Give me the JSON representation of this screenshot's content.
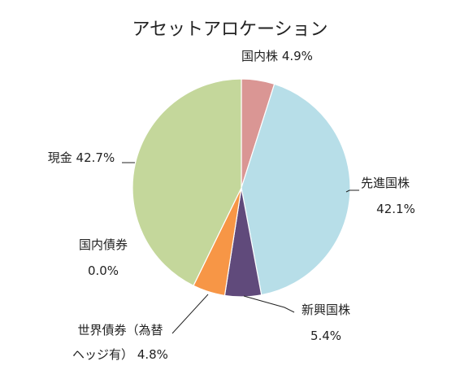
{
  "chart_data": {
    "type": "pie",
    "title": "アセットアロケーション",
    "slices": [
      {
        "label": "国内株",
        "value": 4.9,
        "value_text": "4.9%",
        "color": "#DA9694"
      },
      {
        "label": "先進国株",
        "value": 42.1,
        "value_text": "42.1%",
        "color": "#B7DEE8"
      },
      {
        "label": "新興国株",
        "value": 5.4,
        "value_text": "5.4%",
        "color": "#604A7B"
      },
      {
        "label": "世界債券（為替ヘッジ有）",
        "value": 4.8,
        "value_text": "4.8%",
        "color": "#F79646",
        "label_lines": [
          "世界債券（為替",
          "ヘッジ有）"
        ]
      },
      {
        "label": "国内債券",
        "value": 0.0,
        "value_text": "0.0%",
        "color": "#4F81BD"
      },
      {
        "label": "現金",
        "value": 42.7,
        "value_text": "42.7%",
        "color": "#C4D79B"
      }
    ],
    "start_angle": "12 o'clock",
    "direction": "clockwise",
    "legend": "none",
    "data_labels": "outside"
  }
}
